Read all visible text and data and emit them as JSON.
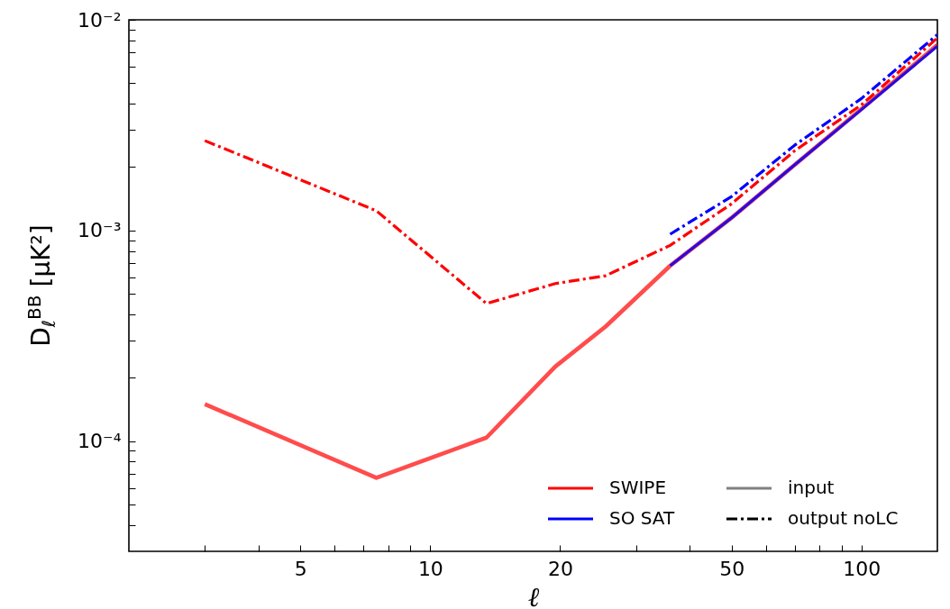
{
  "chart_data": {
    "type": "line",
    "xlabel": "ℓ",
    "ylabel": "D$_{ℓ}$$^{BB}$ [μK²]",
    "log": "xy",
    "xlim": [
      2,
      150
    ],
    "ylim": [
      3e-05,
      0.01
    ],
    "xticks": [
      {
        "value": 3,
        "label": null
      },
      {
        "value": 4,
        "label": null
      },
      5,
      {
        "value": 6,
        "label": null
      },
      {
        "value": 7,
        "label": null
      },
      {
        "value": 8,
        "label": null
      },
      {
        "value": 9,
        "label": null
      },
      10,
      20,
      {
        "value": 30,
        "label": null
      },
      {
        "value": 40,
        "label": null
      },
      50,
      {
        "value": 60,
        "label": null
      },
      {
        "value": 70,
        "label": null
      },
      {
        "value": 80,
        "label": null
      },
      {
        "value": 90,
        "label": null
      },
      100
    ],
    "yticks": [
      {
        "value": 4e-05,
        "label": null
      },
      {
        "value": 5e-05,
        "label": null
      },
      {
        "value": 6e-05,
        "label": null
      },
      {
        "value": 7e-05,
        "label": null
      },
      {
        "value": 8e-05,
        "label": null
      },
      {
        "value": 9e-05,
        "label": null
      },
      {
        "value": 0.0001,
        "label": "10⁻⁴"
      },
      {
        "value": 0.0002,
        "label": null
      },
      {
        "value": 0.0003,
        "label": null
      },
      {
        "value": 0.0004,
        "label": null
      },
      {
        "value": 0.0005,
        "label": null
      },
      {
        "value": 0.0006,
        "label": null
      },
      {
        "value": 0.0007,
        "label": null
      },
      {
        "value": 0.0008,
        "label": null
      },
      {
        "value": 0.0009,
        "label": null
      },
      {
        "value": 0.001,
        "label": "10⁻³"
      },
      {
        "value": 0.002,
        "label": null
      },
      {
        "value": 0.003,
        "label": null
      },
      {
        "value": 0.004,
        "label": null
      },
      {
        "value": 0.005,
        "label": null
      },
      {
        "value": 0.006,
        "label": null
      },
      {
        "value": 0.007,
        "label": null
      },
      {
        "value": 0.008,
        "label": null
      },
      {
        "value": 0.009,
        "label": null
      },
      {
        "value": 0.01,
        "label": "10⁻²"
      }
    ],
    "legend": "bottom right",
    "marker": "none",
    "annotations": [
      "input",
      "output noLC"
    ],
    "series": [
      {
        "name": "SWIPE",
        "color": "#ff0000",
        "line_style": "solid",
        "x": [
          3,
          7.5,
          13.5,
          19.5,
          25.5,
          36,
          50,
          70,
          100,
          150
        ],
        "values": [
          0.00015,
          6.7e-05,
          0.000104,
          0.000226,
          0.00035,
          0.00068,
          0.00115,
          0.00205,
          0.00377,
          0.0076
        ]
      },
      {
        "name": "SO SAT",
        "color": "#0000ff",
        "line_style": "solid",
        "x": [
          36,
          50,
          70,
          100,
          150
        ],
        "values": [
          0.00068,
          0.00115,
          0.00205,
          0.00375,
          0.0075
        ]
      },
      {
        "color": "#ff0000",
        "line_style": "dashdot",
        "x": [
          3,
          7.5,
          13.5,
          19.5,
          25.5,
          36,
          50,
          70,
          100,
          150
        ],
        "values": [
          0.00267,
          0.00124,
          0.00045,
          0.00056,
          0.00061,
          0.00085,
          0.00134,
          0.00239,
          0.00395,
          0.0082
        ]
      },
      {
        "color": "#0000ff",
        "line_style": "dashdot",
        "x": [
          36,
          50,
          70,
          100,
          150
        ],
        "values": [
          0.00096,
          0.00145,
          0.00254,
          0.00423,
          0.0085
        ]
      }
    ]
  }
}
